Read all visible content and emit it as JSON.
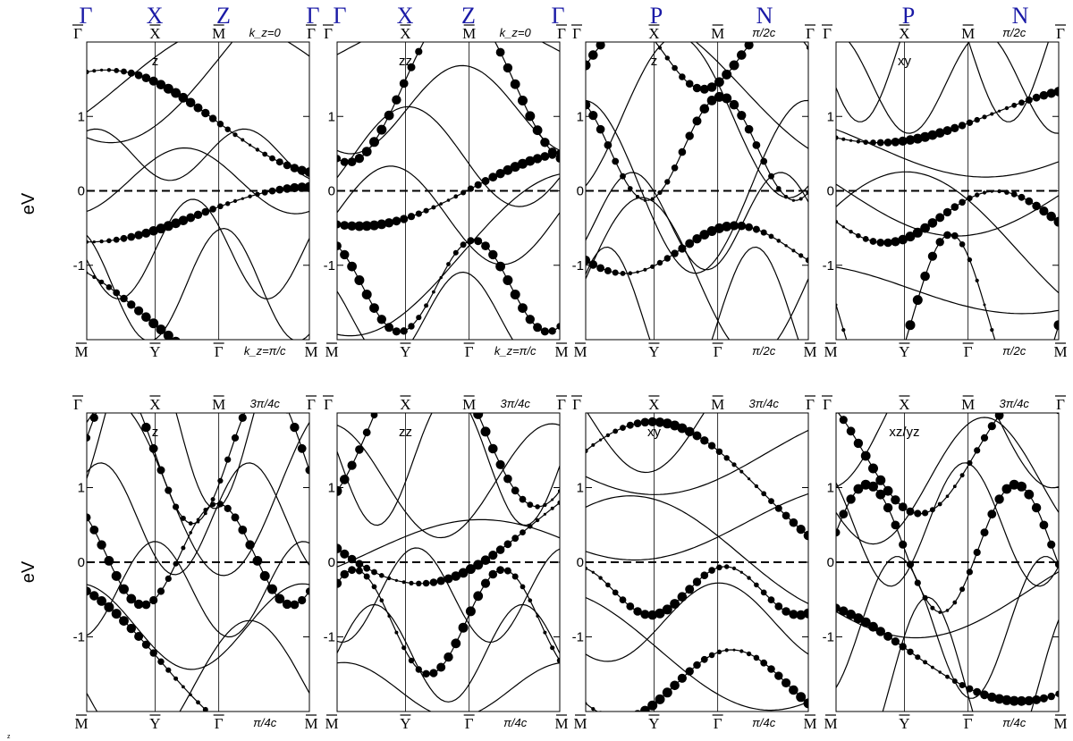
{
  "header": {
    "top_labels": [
      "Γ",
      "X",
      "Z",
      "Γ",
      "Γ",
      "X",
      "Z",
      "Γ",
      "P",
      "N",
      "P",
      "N"
    ],
    "color": "#1a1aa6"
  },
  "ylabel": "eV",
  "corner_note": "z",
  "chart_data": [
    {
      "type": "line",
      "panel": "1",
      "orbital": "z",
      "top_ticks": [
        "Γ",
        "X",
        "M",
        "Γ"
      ],
      "bottom_ticks": [
        "M",
        "Y",
        "Γ",
        "M"
      ],
      "top_kz": "k_z=0",
      "bottom_kz": "k_z=π/c",
      "ylim": [
        -2.0,
        2.0
      ],
      "yticks": [
        -1,
        0,
        1
      ],
      "fermi_level": 0
    },
    {
      "type": "line",
      "panel": "2",
      "orbital": "zz",
      "top_ticks": [
        "Γ",
        "X",
        "M",
        "Γ"
      ],
      "bottom_ticks": [
        "M",
        "Y",
        "Γ",
        "M"
      ],
      "top_kz": "k_z=0",
      "bottom_kz": "k_z=π/c",
      "ylim": [
        -2.0,
        2.0
      ],
      "yticks": [
        -1,
        0,
        1
      ],
      "fermi_level": 0
    },
    {
      "type": "line",
      "panel": "3",
      "orbital": "z",
      "top_ticks": [
        "Γ",
        "X",
        "M",
        "Γ"
      ],
      "bottom_ticks": [
        "M",
        "Y",
        "Γ",
        "M"
      ],
      "top_kz": "π/2c",
      "bottom_kz": "π/2c",
      "ylim": [
        -2.0,
        2.0
      ],
      "yticks": [
        -1,
        0,
        1
      ],
      "fermi_level": 0
    },
    {
      "type": "line",
      "panel": "4",
      "orbital": "xy",
      "top_ticks": [
        "Γ",
        "X",
        "M",
        "Γ"
      ],
      "bottom_ticks": [
        "M",
        "Y",
        "Γ",
        "M"
      ],
      "top_kz": "π/2c",
      "bottom_kz": "π/2c",
      "ylim": [
        -2.0,
        2.0
      ],
      "yticks": [
        -1,
        0,
        1
      ],
      "fermi_level": 0
    },
    {
      "type": "line",
      "panel": "5",
      "orbital": "z",
      "top_ticks": [
        "Γ",
        "X",
        "M",
        "Γ"
      ],
      "bottom_ticks": [
        "M",
        "Y",
        "Γ",
        "M"
      ],
      "top_kz": "3π/4c",
      "bottom_kz": "π/4c",
      "ylim": [
        -2.0,
        2.0
      ],
      "yticks": [
        -1,
        0,
        1
      ],
      "fermi_level": 0
    },
    {
      "type": "line",
      "panel": "6",
      "orbital": "zz",
      "top_ticks": [
        "Γ",
        "X",
        "M",
        "Γ"
      ],
      "bottom_ticks": [
        "M",
        "Y",
        "Γ",
        "M"
      ],
      "top_kz": "3π/4c",
      "bottom_kz": "π/4c",
      "ylim": [
        -2.0,
        2.0
      ],
      "yticks": [
        -1,
        0,
        1
      ],
      "fermi_level": 0
    },
    {
      "type": "line",
      "panel": "7",
      "orbital": "xy",
      "top_ticks": [
        "Γ",
        "X",
        "M",
        "Γ"
      ],
      "bottom_ticks": [
        "M",
        "Y",
        "Γ",
        "M"
      ],
      "top_kz": "3π/4c",
      "bottom_kz": "π/4c",
      "ylim": [
        -2.0,
        2.0
      ],
      "yticks": [
        -1,
        0,
        1
      ],
      "fermi_level": 0
    },
    {
      "type": "line",
      "panel": "8",
      "orbital": "xz/yz",
      "top_ticks": [
        "Γ",
        "X",
        "M",
        "Γ"
      ],
      "bottom_ticks": [
        "M",
        "Y",
        "Γ",
        "M"
      ],
      "top_kz": "3π/4c",
      "bottom_kz": "π/4c",
      "ylim": [
        -2.0,
        2.0
      ],
      "yticks": [
        -1,
        0,
        1
      ],
      "fermi_level": 0
    }
  ]
}
